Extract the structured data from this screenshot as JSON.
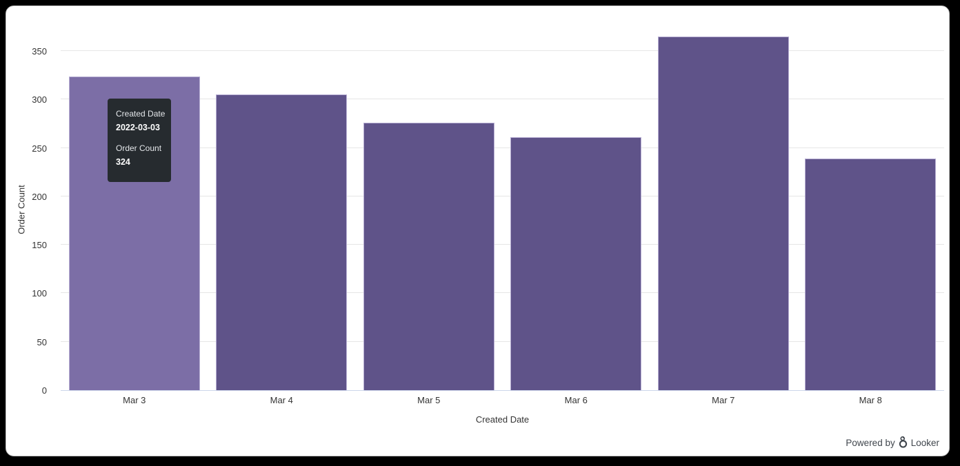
{
  "frame": {
    "background": "#000000",
    "card_background": "#ffffff"
  },
  "chart_data": {
    "type": "bar",
    "title": "",
    "categories": [
      "Mar 3",
      "Mar 4",
      "Mar 5",
      "Mar 6",
      "Mar 7",
      "Mar 8"
    ],
    "values": [
      324,
      305,
      276,
      261,
      365,
      239
    ],
    "xlabel": "Created Date",
    "ylabel": "Order Count",
    "ylim": [
      0,
      375
    ],
    "yticks": [
      0,
      50,
      100,
      150,
      200,
      250,
      300,
      350
    ],
    "grid": "horizontal-only",
    "legend": "none",
    "bar_color": "#5f5389",
    "bar_hover_color": "#7c6ea6",
    "hovered_index": 0
  },
  "tooltip": {
    "dimension_label": "Created Date",
    "dimension_value": "2022-03-03",
    "measure_label": "Order Count",
    "measure_value": "324",
    "background": "#262b2f",
    "text_color": "#ffffff"
  },
  "footer": {
    "powered_by": "Powered by",
    "brand": "Looker"
  }
}
